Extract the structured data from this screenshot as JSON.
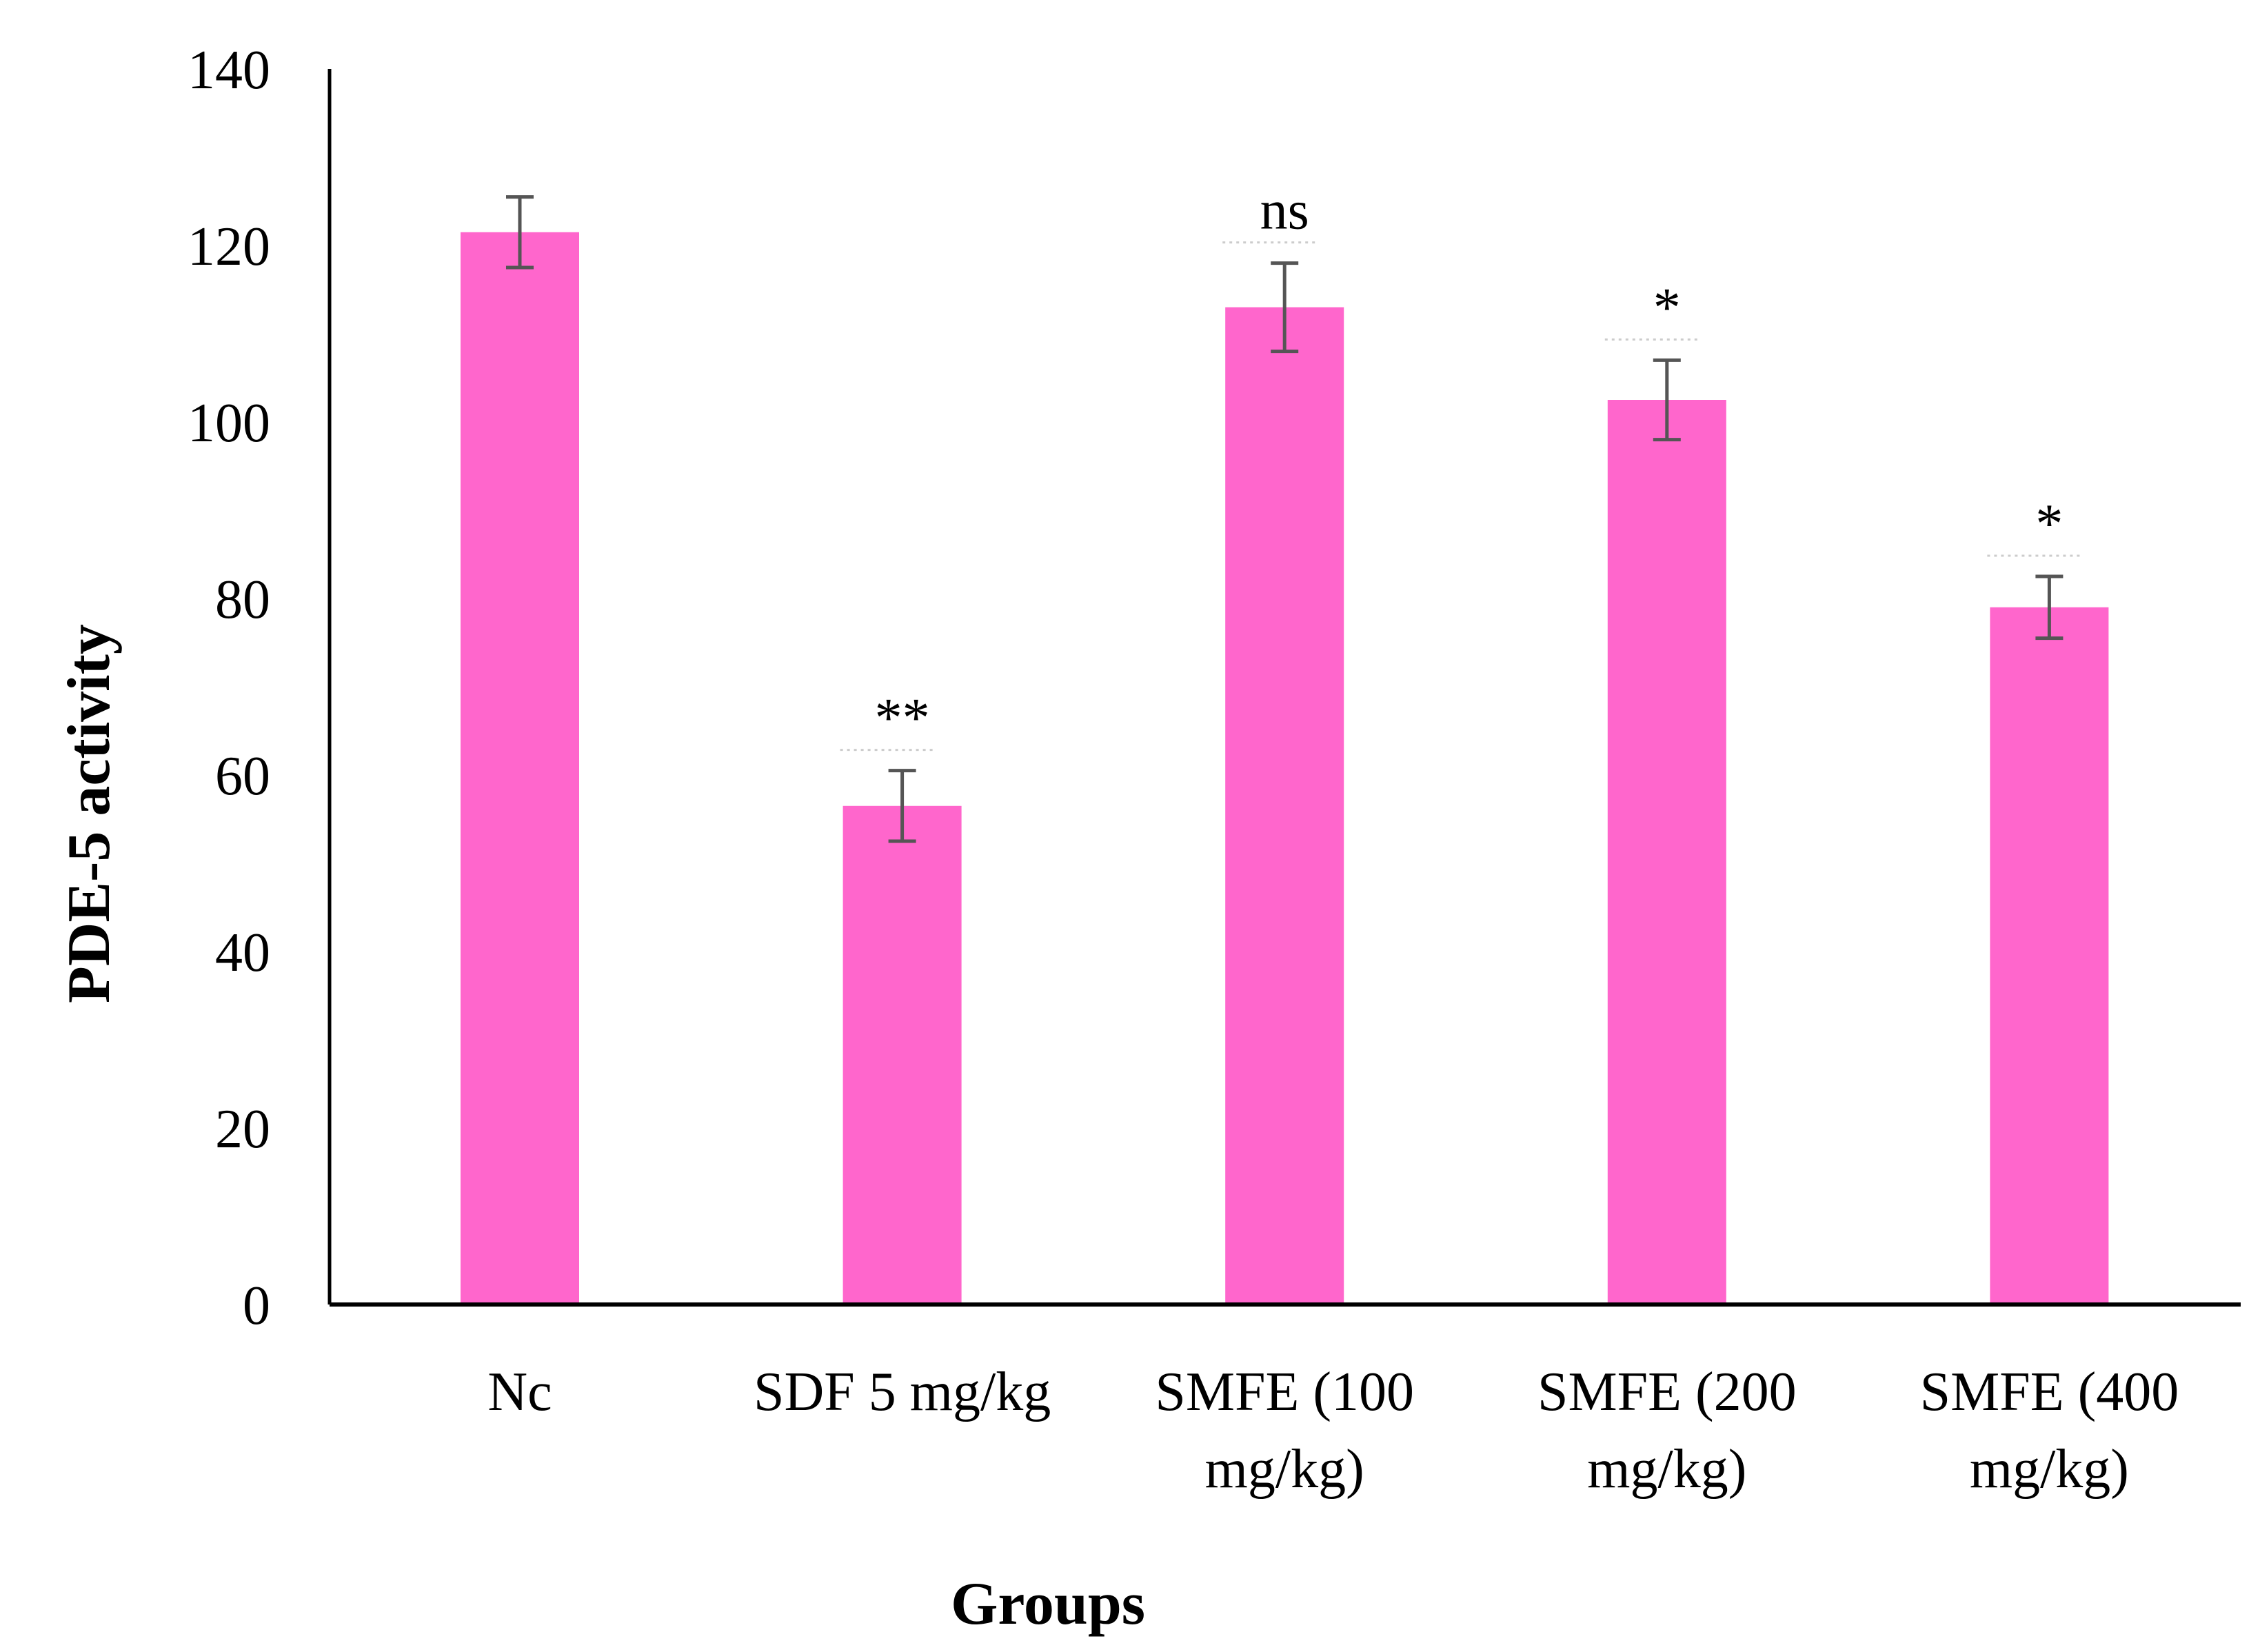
{
  "chart_data": {
    "type": "bar",
    "title": "",
    "xlabel": "Groups",
    "ylabel": "PDE-5 activity",
    "ylim": [
      0,
      140
    ],
    "yticks": [
      0,
      20,
      40,
      60,
      80,
      100,
      120,
      140
    ],
    "grid": false,
    "legend": "none",
    "bar_color": "#ff66cc",
    "categories": [
      [
        "Nc"
      ],
      [
        "SDF 5 mg/kg"
      ],
      [
        "SMFE (100",
        "mg/kg)"
      ],
      [
        "SMFE (200",
        "mg/kg)"
      ],
      [
        "SMFE (400",
        "mg/kg)"
      ]
    ],
    "values": [
      121.5,
      56.5,
      113,
      102.5,
      79
    ],
    "errors": [
      4,
      4,
      5,
      4.5,
      3.5
    ],
    "annotations": [
      "",
      "**",
      "ns",
      "*",
      "*"
    ]
  }
}
